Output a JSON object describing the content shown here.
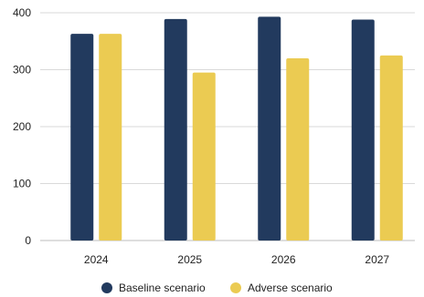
{
  "chart_data": {
    "type": "bar",
    "categories": [
      "2024",
      "2025",
      "2026",
      "2027"
    ],
    "series": [
      {
        "name": "Baseline scenario",
        "color": "#223a5e",
        "values": [
          363,
          389,
          393,
          388
        ]
      },
      {
        "name": "Adverse scenario",
        "color": "#ebcb52",
        "values": [
          363,
          295,
          320,
          325
        ]
      }
    ],
    "title": "",
    "xlabel": "",
    "ylabel": "",
    "ylim": [
      0,
      400
    ],
    "yticks": [
      0,
      100,
      200,
      300,
      400
    ],
    "grid": true,
    "legend": "bottom"
  }
}
